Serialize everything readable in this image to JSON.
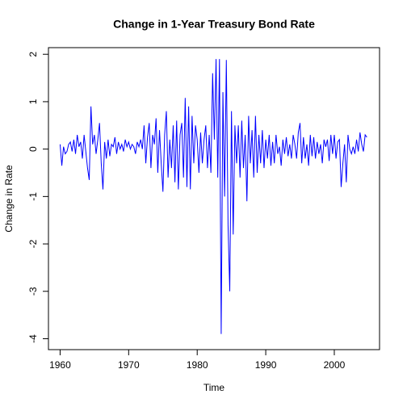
{
  "chart_data": {
    "type": "line",
    "title": "Change in 1-Year Treasury Bond Rate",
    "x_label": "Time",
    "y_label": "Change in Rate",
    "x": [
      1960,
      1960.25,
      1960.5,
      1960.75,
      1961,
      1961.25,
      1961.5,
      1961.75,
      1962,
      1962.25,
      1962.5,
      1962.75,
      1963,
      1963.25,
      1963.5,
      1963.75,
      1964,
      1964.25,
      1964.5,
      1964.75,
      1965,
      1965.25,
      1965.5,
      1965.75,
      1966,
      1966.25,
      1966.5,
      1966.75,
      1967,
      1967.25,
      1967.5,
      1967.75,
      1968,
      1968.25,
      1968.5,
      1968.75,
      1969,
      1969.25,
      1969.5,
      1969.75,
      1970,
      1970.25,
      1970.5,
      1970.75,
      1971,
      1971.25,
      1971.5,
      1971.75,
      1972,
      1972.25,
      1972.5,
      1972.75,
      1973,
      1973.25,
      1973.5,
      1973.75,
      1974,
      1974.25,
      1974.5,
      1974.75,
      1975,
      1975.25,
      1975.5,
      1975.75,
      1976,
      1976.25,
      1976.5,
      1976.75,
      1977,
      1977.25,
      1977.5,
      1977.75,
      1978,
      1978.25,
      1978.5,
      1978.75,
      1979,
      1979.25,
      1979.5,
      1979.75,
      1980,
      1980.25,
      1980.5,
      1980.75,
      1981,
      1981.25,
      1981.5,
      1981.75,
      1982,
      1982.25,
      1982.5,
      1982.75,
      1983,
      1983.25,
      1983.5,
      1983.75,
      1984,
      1984.25,
      1984.5,
      1984.75,
      1985,
      1985.25,
      1985.5,
      1985.75,
      1986,
      1986.25,
      1986.5,
      1986.75,
      1987,
      1987.25,
      1987.5,
      1987.75,
      1988,
      1988.25,
      1988.5,
      1988.75,
      1989,
      1989.25,
      1989.5,
      1989.75,
      1990,
      1990.25,
      1990.5,
      1990.75,
      1991,
      1991.25,
      1991.5,
      1991.75,
      1992,
      1992.25,
      1992.5,
      1992.75,
      1993,
      1993.25,
      1993.5,
      1993.75,
      1994,
      1994.25,
      1994.5,
      1994.75,
      1995,
      1995.25,
      1995.5,
      1995.75,
      1996,
      1996.25,
      1996.5,
      1996.75,
      1997,
      1997.25,
      1997.5,
      1997.75,
      1998,
      1998.25,
      1998.5,
      1998.75,
      1999,
      1999.25,
      1999.5,
      1999.75,
      2000,
      2000.25,
      2000.5,
      2000.75,
      2001,
      2001.25,
      2001.5,
      2001.75,
      2002,
      2002.25,
      2002.5,
      2002.75,
      2003,
      2003.25,
      2003.5,
      2003.75,
      2004,
      2004.25,
      2004.5,
      2004.75
    ],
    "series": [
      {
        "name": "Change in Rate",
        "color": "#0000ff",
        "values": [
          0.1,
          -0.35,
          0.05,
          -0.1,
          -0.05,
          0.1,
          0.15,
          -0.05,
          0.2,
          -0.1,
          0.3,
          0.05,
          0.15,
          -0.2,
          0.3,
          -0.05,
          -0.4,
          -0.65,
          0.9,
          0.1,
          0.3,
          -0.1,
          0.2,
          0.55,
          -0.3,
          -0.85,
          0.15,
          -0.2,
          0.2,
          -0.15,
          0.1,
          0.05,
          0.25,
          -0.1,
          0.15,
          0.0,
          0.1,
          -0.05,
          0.2,
          0.05,
          0.15,
          0.0,
          0.1,
          0.05,
          -0.1,
          0.15,
          0.05,
          0.2,
          0.0,
          0.5,
          -0.3,
          0.25,
          0.55,
          -0.4,
          0.3,
          0.1,
          0.65,
          -0.5,
          0.4,
          -0.3,
          -0.9,
          0.3,
          0.8,
          -0.6,
          0.2,
          -0.4,
          0.5,
          -0.7,
          0.6,
          -0.85,
          0.3,
          0.55,
          -0.6,
          1.08,
          -0.8,
          0.9,
          -0.85,
          0.7,
          -0.3,
          0.5,
          0.2,
          -0.5,
          0.35,
          -0.3,
          0.2,
          0.5,
          -0.4,
          0.3,
          -0.5,
          1.6,
          0.2,
          1.9,
          -0.6,
          1.9,
          -3.9,
          1.2,
          -1.0,
          1.88,
          -1.6,
          -3.0,
          0.8,
          -1.8,
          0.5,
          -0.3,
          0.5,
          -0.6,
          0.6,
          -0.4,
          0.3,
          -1.1,
          0.7,
          -0.3,
          0.4,
          -0.6,
          0.7,
          -0.5,
          0.3,
          -0.3,
          0.4,
          -0.4,
          0.2,
          -0.2,
          0.3,
          -0.35,
          0.15,
          -0.3,
          0.3,
          -0.1,
          0.05,
          -0.35,
          0.2,
          -0.1,
          0.25,
          -0.15,
          0.1,
          -0.2,
          0.3,
          0.1,
          -0.2,
          0.35,
          0.55,
          -0.3,
          0.25,
          -0.2,
          0.1,
          -0.35,
          0.3,
          -0.15,
          0.25,
          -0.2,
          0.15,
          -0.1,
          0.1,
          -0.3,
          0.2,
          0.05,
          0.2,
          -0.25,
          0.3,
          -0.1,
          0.3,
          -0.2,
          0.15,
          0.2,
          -0.8,
          -0.3,
          0.1,
          -0.7,
          0.3,
          0.0,
          -0.1,
          0.05,
          -0.1,
          0.2,
          -0.05,
          0.35,
          0.1,
          -0.05,
          0.3,
          0.25
        ]
      }
    ],
    "xlim": [
      1958.3,
      2006.6
    ],
    "xticks": [
      1960,
      1970,
      1980,
      1990,
      2000
    ],
    "ylim": [
      -4.23,
      2.14
    ],
    "yticks": [
      -4,
      -3,
      -2,
      -1,
      0,
      1,
      2
    ]
  }
}
